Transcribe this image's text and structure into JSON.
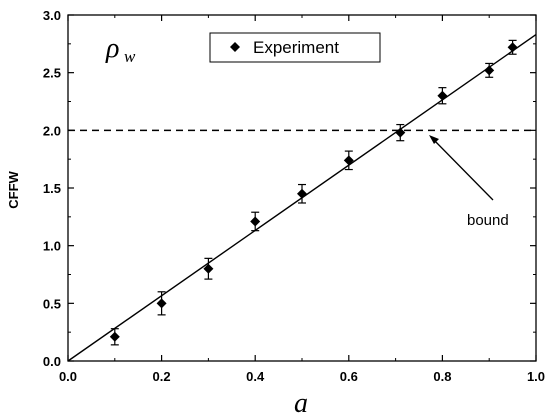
{
  "chart_data": {
    "type": "scatter",
    "title": "",
    "xlabel": "a",
    "ylabel": "CFFW",
    "xlim": [
      0.0,
      1.0
    ],
    "ylim": [
      0.0,
      3.0
    ],
    "x_ticks": [
      "0.0",
      "0.2",
      "0.4",
      "0.6",
      "0.8",
      "1.0"
    ],
    "y_ticks": [
      "0.0",
      "0.5",
      "1.0",
      "1.5",
      "2.0",
      "2.5",
      "3.0"
    ],
    "grid": false,
    "legend_position": "top-center",
    "series": [
      {
        "name": "Experiment",
        "marker": "diamond",
        "x": [
          0.1,
          0.2,
          0.3,
          0.4,
          0.5,
          0.6,
          0.71,
          0.8,
          0.9,
          0.95
        ],
        "y": [
          0.21,
          0.5,
          0.8,
          1.21,
          1.45,
          1.74,
          1.98,
          2.3,
          2.52,
          2.72
        ],
        "err": [
          0.07,
          0.1,
          0.09,
          0.08,
          0.08,
          0.08,
          0.07,
          0.07,
          0.06,
          0.06
        ]
      }
    ],
    "fit_line": {
      "x": [
        0.0,
        1.0
      ],
      "y": [
        0.0,
        2.83
      ]
    },
    "bound_line": {
      "y": 2.0
    },
    "annotations": {
      "symbol": "ρ",
      "symbol_sub": "w",
      "bound_label": "bound"
    }
  },
  "colors": {
    "foreground": "#000000",
    "background": "#ffffff"
  }
}
